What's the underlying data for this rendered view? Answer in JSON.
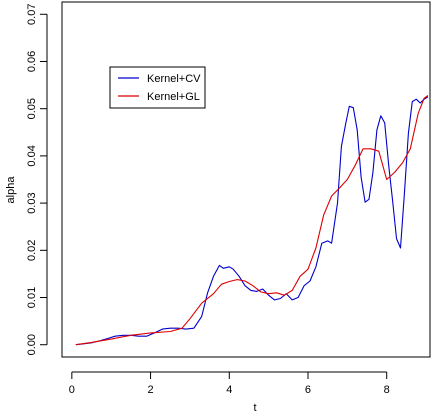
{
  "chart_data": {
    "type": "line",
    "title": "",
    "xlabel": "t",
    "ylabel": "alpha",
    "xlim": [
      -0.25,
      9.1
    ],
    "ylim": [
      -0.0026,
      0.0726
    ],
    "xticks": [
      0,
      2,
      4,
      6,
      8
    ],
    "xtick_labels": [
      "0",
      "2",
      "4",
      "6",
      "8"
    ],
    "yticks": [
      0,
      0.01,
      0.02,
      0.03,
      0.04,
      0.05,
      0.06,
      0.07
    ],
    "ytick_labels": [
      "0.00",
      "0.01",
      "0.02",
      "0.03",
      "0.04",
      "0.05",
      "0.06",
      "0.07"
    ],
    "grid": false,
    "legend_position": "upper-left",
    "series": [
      {
        "name": "Kernel+CV",
        "color": "#0000cc",
        "x": [
          0.1,
          0.3,
          0.5,
          0.7,
          0.9,
          1.1,
          1.3,
          1.5,
          1.7,
          1.9,
          2.1,
          2.3,
          2.5,
          2.7,
          2.9,
          3.1,
          3.3,
          3.45,
          3.6,
          3.75,
          3.85,
          4.0,
          4.1,
          4.25,
          4.4,
          4.55,
          4.7,
          4.85,
          5.0,
          5.15,
          5.3,
          5.45,
          5.6,
          5.75,
          5.9,
          6.05,
          6.2,
          6.35,
          6.5,
          6.6,
          6.75,
          6.85,
          6.95,
          7.05,
          7.15,
          7.25,
          7.35,
          7.45,
          7.55,
          7.65,
          7.75,
          7.85,
          7.95,
          8.05,
          8.15,
          8.25,
          8.35,
          8.45,
          8.55,
          8.65,
          8.75,
          8.85,
          8.95,
          9.05
        ],
        "y": [
          0.0,
          0.0002,
          0.0004,
          0.0008,
          0.0013,
          0.0018,
          0.002,
          0.002,
          0.0018,
          0.0018,
          0.0025,
          0.0033,
          0.0035,
          0.0035,
          0.0033,
          0.0035,
          0.006,
          0.011,
          0.0145,
          0.0168,
          0.0162,
          0.0165,
          0.016,
          0.0145,
          0.0125,
          0.0115,
          0.0113,
          0.0118,
          0.0105,
          0.0095,
          0.0098,
          0.0108,
          0.0095,
          0.01,
          0.0125,
          0.0135,
          0.0165,
          0.0215,
          0.022,
          0.0215,
          0.03,
          0.042,
          0.0465,
          0.0505,
          0.0502,
          0.0455,
          0.0355,
          0.0302,
          0.0308,
          0.0365,
          0.0455,
          0.0485,
          0.047,
          0.038,
          0.0305,
          0.0225,
          0.0205,
          0.032,
          0.0448,
          0.0515,
          0.052,
          0.0512,
          0.052,
          0.0525
        ]
      },
      {
        "name": "Kernel+GL",
        "color": "#dd0000",
        "x": [
          0.1,
          0.5,
          1.0,
          1.5,
          2.0,
          2.5,
          2.8,
          3.0,
          3.3,
          3.6,
          3.8,
          4.0,
          4.2,
          4.4,
          4.6,
          4.8,
          5.0,
          5.2,
          5.4,
          5.6,
          5.8,
          6.0,
          6.2,
          6.4,
          6.6,
          6.8,
          7.0,
          7.2,
          7.4,
          7.6,
          7.8,
          8.0,
          8.2,
          8.4,
          8.6,
          8.8,
          8.95,
          9.05
        ],
        "y": [
          0.0,
          0.0005,
          0.0012,
          0.002,
          0.0025,
          0.0028,
          0.0035,
          0.0055,
          0.0088,
          0.0108,
          0.0128,
          0.0134,
          0.0138,
          0.0135,
          0.0125,
          0.0112,
          0.0108,
          0.011,
          0.0105,
          0.0115,
          0.0145,
          0.016,
          0.0205,
          0.0275,
          0.0315,
          0.0332,
          0.035,
          0.038,
          0.0415,
          0.0415,
          0.041,
          0.035,
          0.0365,
          0.0385,
          0.0415,
          0.049,
          0.0522,
          0.0528
        ]
      }
    ]
  }
}
